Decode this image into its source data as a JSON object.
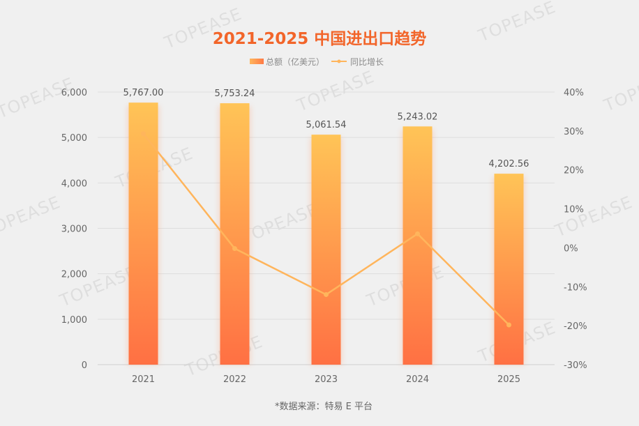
{
  "chart_data": {
    "type": "bar",
    "title": "2021-2025 中国进出口趋势",
    "categories": [
      "2021",
      "2022",
      "2023",
      "2024",
      "2025"
    ],
    "series": [
      {
        "name": "总额（亿美元）",
        "type": "bar",
        "axis": "left",
        "values": [
          5767.0,
          5753.24,
          5061.54,
          5243.02,
          4202.56
        ],
        "labels": [
          "5,767.00",
          "5,753.24",
          "5,061.54",
          "5,243.02",
          "4,202.56"
        ]
      },
      {
        "name": "同比增长",
        "type": "line",
        "axis": "right",
        "values": [
          29.3,
          -0.2,
          -12.0,
          3.6,
          -19.8
        ],
        "unit": "%"
      }
    ],
    "left_axis": {
      "ylim": [
        0,
        6000
      ],
      "ticks": [
        "0",
        "1,000",
        "2,000",
        "3,000",
        "4,000",
        "5,000",
        "6,000"
      ]
    },
    "right_axis": {
      "ylim": [
        -30,
        40
      ],
      "ticks": [
        "-30%",
        "-20%",
        "-10%",
        "0%",
        "10%",
        "20%",
        "30%",
        "40%"
      ]
    },
    "grid": true,
    "legend_position": "top-center",
    "colors": {
      "bar_top": "#ffc457",
      "bar_bottom": "#ff7043",
      "line": "#ffb55c",
      "title": "#f2652a"
    }
  },
  "source": "*数据来源：特易 E 平台",
  "watermark": "TOPEASE"
}
